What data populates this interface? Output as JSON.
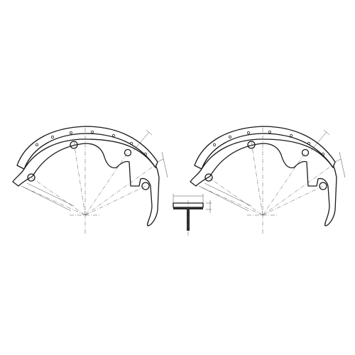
{
  "drawing": {
    "dimensions": {
      "left_shoe_radius": "",
      "right_shoe_radius": "",
      "section_width": "",
      "section_thickness": ""
    }
  }
}
